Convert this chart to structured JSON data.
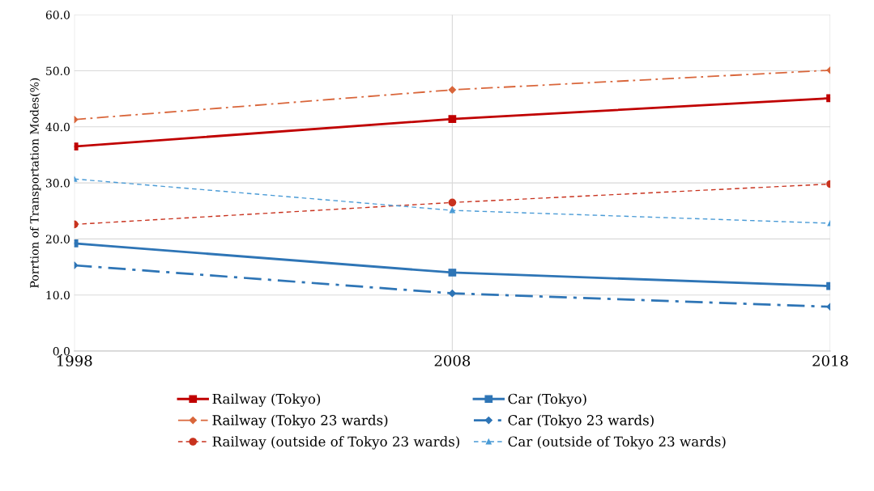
{
  "chart_data": {
    "type": "line",
    "ylabel": "Porrtion of Transportation Modes(%)",
    "categories": [
      "1998",
      "2008",
      "2018"
    ],
    "series": [
      {
        "name": "Railway (Tokyo)",
        "color": "#c00000",
        "values": [
          36.5,
          41.4,
          45.1
        ],
        "marker": "square",
        "line_style": "solid"
      },
      {
        "name": "Railway (Tokyo 23 wards)",
        "color": "#d9663b",
        "values": [
          41.3,
          46.6,
          50.1
        ],
        "marker": "diamond",
        "line_style": "dashdot"
      },
      {
        "name": "Railway (outside of Tokyo 23 wards)",
        "color": "#c8321e",
        "values": [
          22.6,
          26.5,
          29.8
        ],
        "marker": "circle",
        "line_style": "dashed"
      },
      {
        "name": "Car (Tokyo)",
        "color": "#2e75b6",
        "values": [
          19.2,
          14.0,
          11.6
        ],
        "marker": "square",
        "line_style": "solid"
      },
      {
        "name": "Car (Tokyo 23 wards)",
        "color": "#2e75b6",
        "values": [
          15.3,
          10.3,
          7.9
        ],
        "marker": "diamond",
        "line_style": "dashdot"
      },
      {
        "name": "Car (outside of Tokyo 23 wards)",
        "color": "#4a9bd6",
        "values": [
          30.7,
          25.1,
          22.8
        ],
        "marker": "triangle",
        "line_style": "dashed"
      }
    ],
    "ylim": [
      0,
      60
    ],
    "yticks": [
      {
        "value": 0,
        "label": "0.0"
      },
      {
        "value": 10,
        "label": "10.0"
      },
      {
        "value": 20,
        "label": "20.0"
      },
      {
        "value": 30,
        "label": "30.0"
      },
      {
        "value": 40,
        "label": "40.0"
      },
      {
        "value": 50,
        "label": "50.0"
      },
      {
        "value": 60,
        "label": "60.0"
      }
    ],
    "grid": true,
    "legend": "bottom"
  }
}
